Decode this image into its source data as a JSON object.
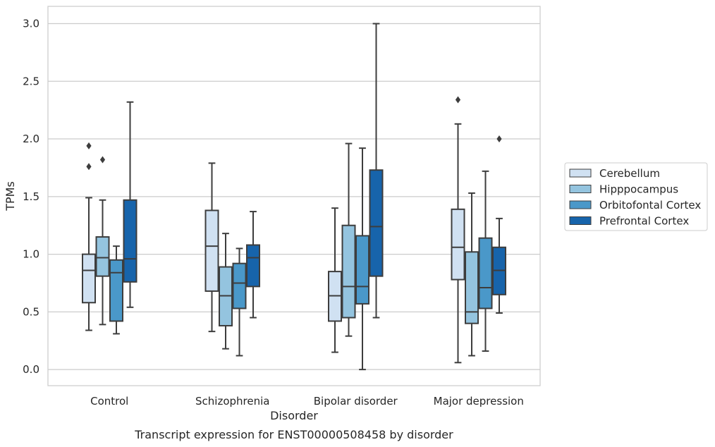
{
  "chart_data": {
    "type": "box",
    "caption": "Transcript expression for ENST00000508458 by disorder",
    "xlabel": "Disorder",
    "ylabel": "TPMs",
    "ylim": [
      -0.14,
      3.15
    ],
    "yticks": [
      0.0,
      0.5,
      1.0,
      1.5,
      2.0,
      2.5,
      3.0
    ],
    "ytick_labels": [
      "0.0",
      "0.5",
      "1.0",
      "1.5",
      "2.0",
      "2.5",
      "3.0"
    ],
    "grid": true,
    "legend_position": "right",
    "categories": [
      "Control",
      "Schizophrenia",
      "Bipolar disorder",
      "Major depression"
    ],
    "series": [
      {
        "name": "Cerebellum",
        "color": "#d0e1f2",
        "boxes": [
          {
            "whislo": 0.34,
            "q1": 0.58,
            "med": 0.86,
            "q3": 1.0,
            "whishi": 1.49,
            "fliers": [
              1.76,
              1.94
            ]
          },
          {
            "whislo": 0.33,
            "q1": 0.68,
            "med": 1.07,
            "q3": 1.38,
            "whishi": 1.79,
            "fliers": []
          },
          {
            "whislo": 0.15,
            "q1": 0.42,
            "med": 0.64,
            "q3": 0.85,
            "whishi": 1.4,
            "fliers": []
          },
          {
            "whislo": 0.06,
            "q1": 0.78,
            "med": 1.06,
            "q3": 1.39,
            "whishi": 2.13,
            "fliers": [
              2.34
            ]
          }
        ]
      },
      {
        "name": "Hipppocampus",
        "color": "#94c4df",
        "boxes": [
          {
            "whislo": 0.39,
            "q1": 0.81,
            "med": 0.97,
            "q3": 1.15,
            "whishi": 1.47,
            "fliers": [
              1.82
            ]
          },
          {
            "whislo": 0.18,
            "q1": 0.38,
            "med": 0.64,
            "q3": 0.89,
            "whishi": 1.18,
            "fliers": []
          },
          {
            "whislo": 0.29,
            "q1": 0.45,
            "med": 0.72,
            "q3": 1.25,
            "whishi": 1.96,
            "fliers": []
          },
          {
            "whislo": 0.12,
            "q1": 0.4,
            "med": 0.5,
            "q3": 1.02,
            "whishi": 1.53,
            "fliers": []
          }
        ]
      },
      {
        "name": "Orbitofontal Cortex",
        "color": "#4a98c9",
        "boxes": [
          {
            "whislo": 0.31,
            "q1": 0.42,
            "med": 0.84,
            "q3": 0.95,
            "whishi": 1.07,
            "fliers": []
          },
          {
            "whislo": 0.12,
            "q1": 0.53,
            "med": 0.75,
            "q3": 0.92,
            "whishi": 1.05,
            "fliers": []
          },
          {
            "whislo": 0.0,
            "q1": 0.57,
            "med": 0.72,
            "q3": 1.16,
            "whishi": 1.92,
            "fliers": []
          },
          {
            "whislo": 0.16,
            "q1": 0.53,
            "med": 0.71,
            "q3": 1.14,
            "whishi": 1.72,
            "fliers": []
          }
        ]
      },
      {
        "name": "Prefrontal Cortex",
        "color": "#1764ab",
        "boxes": [
          {
            "whislo": 0.54,
            "q1": 0.76,
            "med": 0.96,
            "q3": 1.47,
            "whishi": 2.32,
            "fliers": []
          },
          {
            "whislo": 0.45,
            "q1": 0.72,
            "med": 0.97,
            "q3": 1.08,
            "whishi": 1.37,
            "fliers": []
          },
          {
            "whislo": 0.45,
            "q1": 0.81,
            "med": 1.24,
            "q3": 1.73,
            "whishi": 3.0,
            "fliers": []
          },
          {
            "whislo": 0.49,
            "q1": 0.65,
            "med": 0.86,
            "q3": 1.06,
            "whishi": 1.31,
            "fliers": [
              2.0
            ]
          }
        ]
      }
    ]
  }
}
